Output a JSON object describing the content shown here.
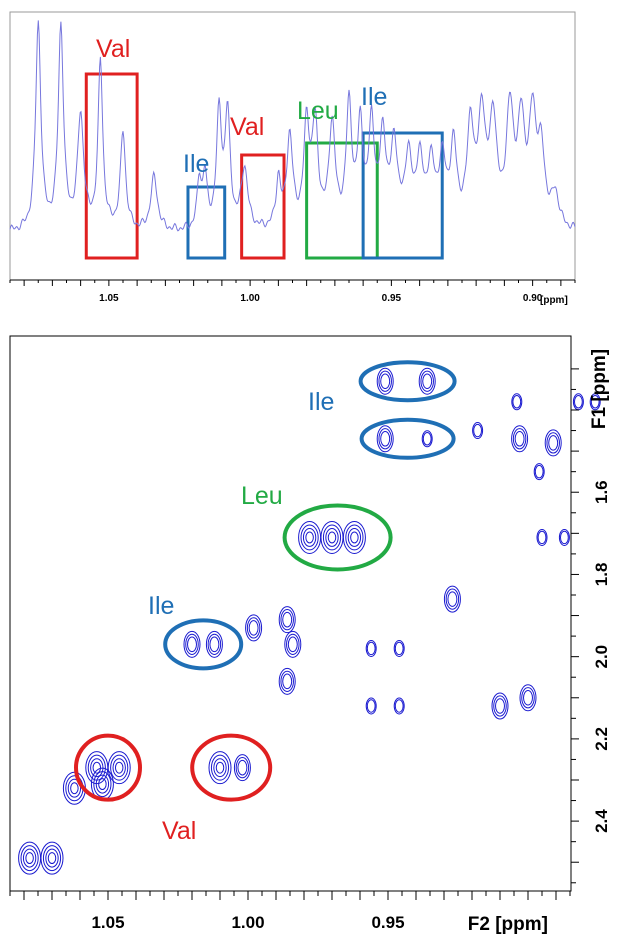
{
  "colors": {
    "spectrum": "#7777dd",
    "contour": "#1a1ad0",
    "val": "#e02020",
    "ile": "#1f6fb5",
    "leu": "#22aa44"
  },
  "chart_data": [
    {
      "type": "line",
      "panel": "1D proton spectrum",
      "xlabel": "[ppm]",
      "x_ticks": [
        "1.05",
        "1.00",
        "0.95",
        "0.90"
      ],
      "xlim": [
        1.085,
        0.885
      ],
      "reversed_x": true,
      "grid": false,
      "peaks_ppm": [
        1.075,
        1.067,
        1.06,
        1.053,
        1.045,
        1.034,
        1.018,
        1.016,
        1.011,
        1.008,
        1.002,
        0.99,
        0.986,
        0.98,
        0.977,
        0.971,
        0.965,
        0.961,
        0.957,
        0.953,
        0.949,
        0.944,
        0.94,
        0.936,
        0.932,
        0.928,
        0.922,
        0.918,
        0.914,
        0.908,
        0.904,
        0.9,
        0.897,
        0.892
      ],
      "annotations": [
        {
          "label": "Val",
          "color": "val",
          "ppm_range": [
            1.058,
            1.04
          ]
        },
        {
          "label": "Ile",
          "color": "ile",
          "ppm_range": [
            1.022,
            1.009
          ]
        },
        {
          "label": "Val",
          "color": "val",
          "ppm_range": [
            1.003,
            0.988
          ]
        },
        {
          "label": "Leu",
          "color": "leu",
          "ppm_range": [
            0.98,
            0.955
          ]
        },
        {
          "label": "Ile",
          "color": "ile",
          "ppm_range": [
            0.96,
            0.932
          ]
        }
      ]
    },
    {
      "type": "scatter",
      "panel": "2D contour map",
      "xlabel": "F2 [ppm]",
      "ylabel": "F1 [ppm]",
      "x_ticks": [
        "1.05",
        "1.00",
        "0.95"
      ],
      "y_ticks": [
        "1.6",
        "1.8",
        "2.0",
        "2.2",
        "2.4"
      ],
      "xlim": [
        1.085,
        0.885
      ],
      "ylim": [
        1.22,
        2.57
      ],
      "reversed_x": true,
      "grid": false,
      "peaks": [
        [
          1.078,
          2.49
        ],
        [
          1.07,
          2.49
        ],
        [
          1.062,
          2.32
        ],
        [
          1.054,
          2.27
        ],
        [
          1.046,
          2.27
        ],
        [
          1.052,
          2.31
        ],
        [
          1.01,
          2.27
        ],
        [
          1.002,
          2.27
        ],
        [
          1.02,
          1.97
        ],
        [
          1.012,
          1.97
        ],
        [
          0.998,
          1.93
        ],
        [
          0.986,
          1.91
        ],
        [
          0.984,
          1.97
        ],
        [
          0.986,
          2.06
        ],
        [
          0.978,
          1.71
        ],
        [
          0.97,
          1.71
        ],
        [
          0.962,
          1.71
        ],
        [
          0.951,
          1.33
        ],
        [
          0.936,
          1.33
        ],
        [
          0.951,
          1.47
        ],
        [
          0.936,
          1.47
        ],
        [
          0.956,
          1.98
        ],
        [
          0.946,
          1.98
        ],
        [
          0.956,
          2.12
        ],
        [
          0.946,
          2.12
        ],
        [
          0.927,
          1.86
        ],
        [
          0.918,
          1.45
        ],
        [
          0.91,
          2.12
        ],
        [
          0.9,
          2.1
        ],
        [
          0.895,
          1.71
        ],
        [
          0.887,
          1.71
        ],
        [
          0.903,
          1.47
        ],
        [
          0.891,
          1.48
        ],
        [
          0.896,
          1.55
        ],
        [
          0.904,
          1.38
        ],
        [
          0.882,
          1.38
        ],
        [
          0.876,
          1.38
        ]
      ],
      "annotations": [
        {
          "label": "Ile",
          "color": "ile",
          "ppm_f2": 0.943,
          "ppm_f1": 1.33
        },
        {
          "label": "Ile",
          "color": "ile",
          "ppm_f2": 0.943,
          "ppm_f1": 1.47
        },
        {
          "label": "Leu",
          "color": "leu",
          "ppm_f2": 0.968,
          "ppm_f1": 1.71
        },
        {
          "label": "Ile",
          "color": "ile",
          "ppm_f2": 1.016,
          "ppm_f1": 1.97
        },
        {
          "label": "Val",
          "color": "val",
          "ppm_f2": 1.05,
          "ppm_f1": 2.27
        },
        {
          "label": "Val",
          "color": "val",
          "ppm_f2": 1.006,
          "ppm_f1": 2.27
        }
      ]
    }
  ]
}
